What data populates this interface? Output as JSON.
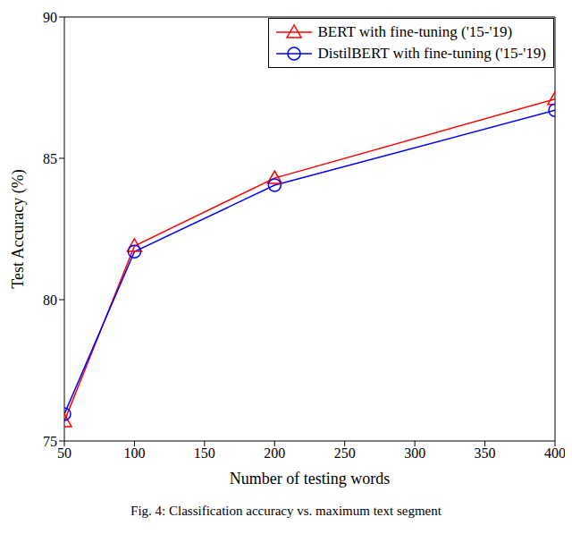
{
  "chart_data": {
    "type": "line",
    "caption": "Fig. 4: Classification accuracy vs. maximum text segment",
    "x_label": "Number of testing words",
    "y_label": "Test Accuracy (%)",
    "xlim": [
      50,
      400
    ],
    "xticks": [
      50,
      100,
      150,
      200,
      250,
      300,
      350,
      400
    ],
    "ylim": [
      75,
      90
    ],
    "yticks": [
      75,
      80,
      85,
      90
    ],
    "grid": false,
    "legend": "upper right",
    "x": [
      50,
      100,
      200,
      400
    ],
    "series": [
      {
        "name": "BERT with fine-tuning ('15-'19)",
        "color": "#ff0000",
        "marker": "triangle",
        "values": [
          75.7,
          81.9,
          84.3,
          87.1
        ]
      },
      {
        "name": "DistilBERT with fine-tuning ('15-'19)",
        "color": "#0000ff",
        "marker": "circle",
        "values": [
          75.95,
          81.7,
          84.05,
          86.7
        ]
      }
    ]
  }
}
